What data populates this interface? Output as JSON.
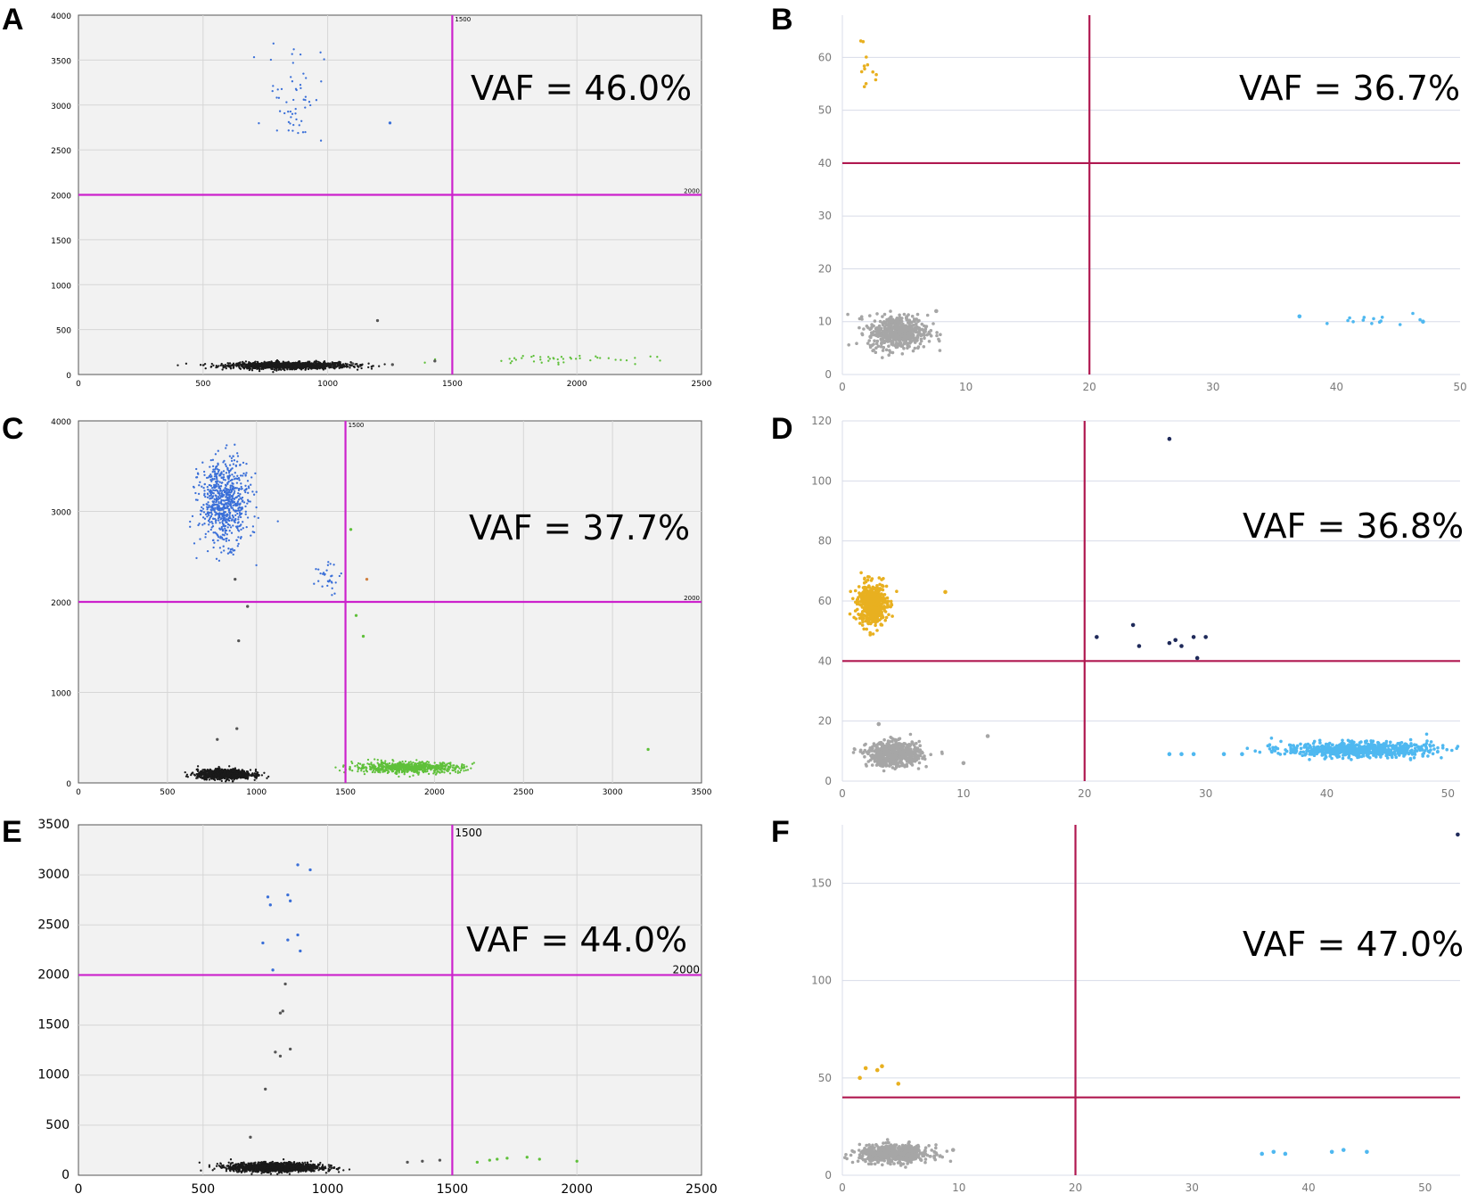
{
  "chart_data": [
    {
      "panel": "A",
      "type": "scatter",
      "vaf_text": "VAF = 46.0%",
      "xlim": [
        0,
        2500
      ],
      "ylim": [
        0,
        4000
      ],
      "xticks": [
        0,
        500,
        1000,
        1500,
        2000,
        2500
      ],
      "yticks": [
        0,
        500,
        1000,
        1500,
        2000,
        2500,
        3000,
        3500,
        4000
      ],
      "thresholds": {
        "x": 1500,
        "y": 2000,
        "x_label": "1500",
        "y_label": "2000"
      },
      "clusters": [
        {
          "color": "#1a1a1a",
          "center": [
            850,
            100
          ],
          "spread": [
            120,
            18
          ],
          "count": 1400
        },
        {
          "color": "#3a6fd8",
          "center": [
            870,
            3150
          ],
          "spread": [
            55,
            300
          ],
          "count": 55
        },
        {
          "color": "#5fc03a",
          "center": [
            1900,
            170
          ],
          "spread": [
            200,
            25
          ],
          "count": 45
        }
      ],
      "points": [
        {
          "x": 1250,
          "y": 2800,
          "color": "#3a6fd8"
        },
        {
          "x": 1200,
          "y": 600,
          "color": "#555555"
        },
        {
          "x": 1100,
          "y": 120,
          "color": "#555555"
        },
        {
          "x": 1260,
          "y": 110,
          "color": "#555555"
        },
        {
          "x": 1430,
          "y": 150,
          "color": "#555555"
        }
      ]
    },
    {
      "panel": "B",
      "type": "scatter",
      "vaf_text": "VAF = 36.7%",
      "xlim": [
        0,
        50
      ],
      "ylim": [
        0,
        68
      ],
      "xticks": [
        0,
        10,
        20,
        30,
        40,
        50
      ],
      "yticks": [
        0,
        10,
        20,
        30,
        40,
        50,
        60
      ],
      "thresholds": {
        "x": 20,
        "y": 40
      },
      "clusters": [
        {
          "color": "#a6a6a6",
          "center": [
            4.5,
            8
          ],
          "spread": [
            1.2,
            1.6
          ],
          "count": 500
        },
        {
          "color": "#e8b020",
          "center": [
            2.2,
            58
          ],
          "spread": [
            0.4,
            4
          ],
          "count": 12
        },
        {
          "color": "#4fb8f0",
          "center": [
            43,
            10.2
          ],
          "spread": [
            2,
            0.5
          ],
          "count": 14
        }
      ],
      "points": [
        {
          "x": 7.6,
          "y": 12,
          "color": "#a6a6a6"
        },
        {
          "x": 37,
          "y": 11,
          "color": "#4fb8f0"
        },
        {
          "x": 47,
          "y": 10,
          "color": "#4fb8f0"
        }
      ]
    },
    {
      "panel": "C",
      "type": "scatter",
      "vaf_text": "VAF = 37.7%",
      "xlim": [
        0,
        3500
      ],
      "ylim": [
        0,
        4000
      ],
      "xticks": [
        0,
        500,
        1000,
        1500,
        2000,
        2500,
        3000,
        3500
      ],
      "yticks": [
        0,
        1000,
        2000,
        3000,
        4000
      ],
      "thresholds": {
        "x": 1500,
        "y": 2000,
        "x_label": "1500",
        "y_label": "2000"
      },
      "clusters": [
        {
          "color": "#1a1a1a",
          "center": [
            820,
            95
          ],
          "spread": [
            75,
            25
          ],
          "count": 1100
        },
        {
          "color": "#3a6fd8",
          "center": [
            820,
            3100
          ],
          "spread": [
            70,
            230
          ],
          "count": 700
        },
        {
          "color": "#5fc03a",
          "center": [
            1850,
            170
          ],
          "spread": [
            150,
            30
          ],
          "count": 700
        },
        {
          "color": "#3a6fd8",
          "center": [
            1400,
            2250
          ],
          "spread": [
            50,
            120
          ],
          "count": 30
        }
      ],
      "points": [
        {
          "x": 1530,
          "y": 2800,
          "color": "#5fc03a"
        },
        {
          "x": 1620,
          "y": 2250,
          "color": "#d08040"
        },
        {
          "x": 1560,
          "y": 1850,
          "color": "#5fc03a"
        },
        {
          "x": 1600,
          "y": 1620,
          "color": "#5fc03a"
        },
        {
          "x": 900,
          "y": 1570,
          "color": "#555555"
        },
        {
          "x": 950,
          "y": 1950,
          "color": "#555555"
        },
        {
          "x": 880,
          "y": 2250,
          "color": "#555555"
        },
        {
          "x": 780,
          "y": 480,
          "color": "#555555"
        },
        {
          "x": 890,
          "y": 600,
          "color": "#555555"
        },
        {
          "x": 3200,
          "y": 370,
          "color": "#5fc03a"
        }
      ]
    },
    {
      "panel": "D",
      "type": "scatter",
      "vaf_text": "VAF = 36.8%",
      "xlim": [
        0,
        51
      ],
      "ylim": [
        0,
        120
      ],
      "xticks": [
        0,
        10,
        20,
        30,
        40,
        50
      ],
      "yticks": [
        0,
        20,
        40,
        60,
        80,
        100,
        120
      ],
      "thresholds": {
        "x": 20,
        "y": 40
      },
      "clusters": [
        {
          "color": "#a6a6a6",
          "center": [
            4.3,
            9
          ],
          "spread": [
            1.1,
            2
          ],
          "count": 600
        },
        {
          "color": "#e8b020",
          "center": [
            2.5,
            59
          ],
          "spread": [
            0.6,
            3.5
          ],
          "count": 500
        },
        {
          "color": "#4fb8f0",
          "center": [
            42.5,
            10.5
          ],
          "spread": [
            3,
            1.2
          ],
          "count": 700
        }
      ],
      "points": [
        {
          "x": 27,
          "y": 114,
          "color": "#1f2a5a"
        },
        {
          "x": 21,
          "y": 48,
          "color": "#1f2a5a"
        },
        {
          "x": 24,
          "y": 52,
          "color": "#1f2a5a"
        },
        {
          "x": 24.5,
          "y": 45,
          "color": "#1f2a5a"
        },
        {
          "x": 27,
          "y": 46,
          "color": "#1f2a5a"
        },
        {
          "x": 27.5,
          "y": 47,
          "color": "#1f2a5a"
        },
        {
          "x": 28,
          "y": 45,
          "color": "#1f2a5a"
        },
        {
          "x": 29,
          "y": 48,
          "color": "#1f2a5a"
        },
        {
          "x": 29.3,
          "y": 41,
          "color": "#1f2a5a"
        },
        {
          "x": 30,
          "y": 48,
          "color": "#1f2a5a"
        },
        {
          "x": 8.5,
          "y": 63,
          "color": "#e8b020"
        },
        {
          "x": 12,
          "y": 15,
          "color": "#a6a6a6"
        },
        {
          "x": 10,
          "y": 6,
          "color": "#a6a6a6"
        },
        {
          "x": 3,
          "y": 19,
          "color": "#a6a6a6"
        },
        {
          "x": 27,
          "y": 9,
          "color": "#4fb8f0"
        },
        {
          "x": 28,
          "y": 9,
          "color": "#4fb8f0"
        },
        {
          "x": 29,
          "y": 9,
          "color": "#4fb8f0"
        },
        {
          "x": 31.5,
          "y": 9,
          "color": "#4fb8f0"
        },
        {
          "x": 33,
          "y": 9,
          "color": "#4fb8f0"
        }
      ]
    },
    {
      "panel": "E",
      "type": "scatter",
      "vaf_text": "VAF = 44.0%",
      "xlim": [
        0,
        2500
      ],
      "ylim": [
        0,
        3500
      ],
      "xticks": [
        0,
        500,
        1000,
        1500,
        2000,
        2500
      ],
      "yticks": [
        0,
        500,
        1000,
        1500,
        2000,
        2500,
        3000,
        3500
      ],
      "thresholds": {
        "x": 1500,
        "y": 2000,
        "x_label": "1500",
        "y_label": "2000"
      },
      "clusters": [
        {
          "color": "#1a1a1a",
          "center": [
            790,
            80
          ],
          "spread": [
            90,
            22
          ],
          "count": 1500
        }
      ],
      "points": [
        {
          "x": 880,
          "y": 3100,
          "color": "#3a6fd8"
        },
        {
          "x": 930,
          "y": 3050,
          "color": "#3a6fd8"
        },
        {
          "x": 760,
          "y": 2780,
          "color": "#3a6fd8"
        },
        {
          "x": 840,
          "y": 2800,
          "color": "#3a6fd8"
        },
        {
          "x": 770,
          "y": 2700,
          "color": "#3a6fd8"
        },
        {
          "x": 850,
          "y": 2740,
          "color": "#3a6fd8"
        },
        {
          "x": 740,
          "y": 2320,
          "color": "#3a6fd8"
        },
        {
          "x": 840,
          "y": 2350,
          "color": "#3a6fd8"
        },
        {
          "x": 880,
          "y": 2400,
          "color": "#3a6fd8"
        },
        {
          "x": 890,
          "y": 2240,
          "color": "#3a6fd8"
        },
        {
          "x": 780,
          "y": 2050,
          "color": "#3a6fd8"
        },
        {
          "x": 830,
          "y": 1910,
          "color": "#555555"
        },
        {
          "x": 820,
          "y": 1640,
          "color": "#555555"
        },
        {
          "x": 810,
          "y": 1620,
          "color": "#555555"
        },
        {
          "x": 790,
          "y": 1230,
          "color": "#555555"
        },
        {
          "x": 810,
          "y": 1190,
          "color": "#555555"
        },
        {
          "x": 850,
          "y": 1260,
          "color": "#555555"
        },
        {
          "x": 750,
          "y": 860,
          "color": "#555555"
        },
        {
          "x": 690,
          "y": 380,
          "color": "#555555"
        },
        {
          "x": 1320,
          "y": 130,
          "color": "#555555"
        },
        {
          "x": 1380,
          "y": 140,
          "color": "#555555"
        },
        {
          "x": 1450,
          "y": 150,
          "color": "#555555"
        },
        {
          "x": 1600,
          "y": 130,
          "color": "#5fc03a"
        },
        {
          "x": 1650,
          "y": 150,
          "color": "#5fc03a"
        },
        {
          "x": 1680,
          "y": 160,
          "color": "#5fc03a"
        },
        {
          "x": 1720,
          "y": 170,
          "color": "#5fc03a"
        },
        {
          "x": 1800,
          "y": 180,
          "color": "#5fc03a"
        },
        {
          "x": 1850,
          "y": 160,
          "color": "#5fc03a"
        },
        {
          "x": 2000,
          "y": 140,
          "color": "#5fc03a"
        }
      ]
    },
    {
      "panel": "F",
      "type": "scatter",
      "vaf_text": "VAF = 47.0%",
      "xlim": [
        0,
        53
      ],
      "ylim": [
        0,
        180
      ],
      "xticks": [
        0,
        10,
        20,
        30,
        40,
        50
      ],
      "yticks": [
        0,
        50,
        100,
        150
      ],
      "thresholds": {
        "x": 20,
        "y": 40
      },
      "clusters": [
        {
          "color": "#a6a6a6",
          "center": [
            4.5,
            11
          ],
          "spread": [
            1.5,
            2.2
          ],
          "count": 600
        }
      ],
      "points": [
        {
          "x": 2,
          "y": 55,
          "color": "#e8b020"
        },
        {
          "x": 3,
          "y": 54,
          "color": "#e8b020"
        },
        {
          "x": 1.5,
          "y": 50,
          "color": "#e8b020"
        },
        {
          "x": 3.4,
          "y": 56,
          "color": "#e8b020"
        },
        {
          "x": 4.8,
          "y": 47,
          "color": "#e8b020"
        },
        {
          "x": 9.5,
          "y": 13,
          "color": "#a6a6a6"
        },
        {
          "x": 36,
          "y": 11,
          "color": "#4fb8f0"
        },
        {
          "x": 37,
          "y": 12,
          "color": "#4fb8f0"
        },
        {
          "x": 38,
          "y": 11,
          "color": "#4fb8f0"
        },
        {
          "x": 42,
          "y": 12,
          "color": "#4fb8f0"
        },
        {
          "x": 43,
          "y": 13,
          "color": "#4fb8f0"
        },
        {
          "x": 45,
          "y": 12,
          "color": "#4fb8f0"
        },
        {
          "x": 52.8,
          "y": 175,
          "color": "#1f2a5a"
        }
      ]
    }
  ],
  "colors": {
    "left_threshold": "#cc22cc",
    "right_threshold": "#b01850",
    "left_plot_bg": "#f2f2f2",
    "right_grid": "#d8dce8"
  }
}
